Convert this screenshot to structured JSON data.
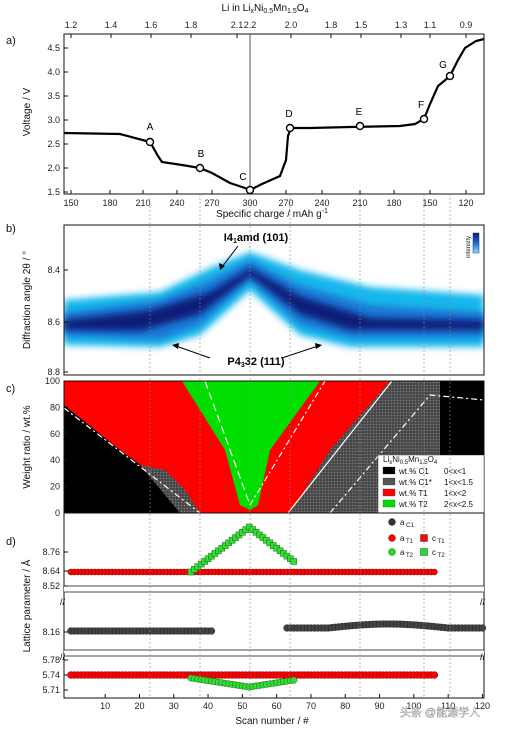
{
  "panels": {
    "a": {
      "label": "a)",
      "top_axis_label": "Li in Li",
      "top_axis_formula_tail": [
        "x",
        "Ni",
        "0.5",
        "Mn",
        "1.5",
        "O",
        "4"
      ],
      "top_ticks": [
        "1.2",
        "1.4",
        "1.6",
        "1.8",
        "2.1",
        "2.2",
        "2.0",
        "1.8",
        "1.5",
        "1.3",
        "1.1",
        "0.9"
      ],
      "bottom_ticks": [
        "150",
        "180",
        "210",
        "240",
        "270",
        "300",
        "270",
        "240",
        "210",
        "180",
        "150",
        "120"
      ],
      "ylabel": "Voltage / V",
      "yticks": [
        "1.5",
        "2.0",
        "2.5",
        "3.0",
        "3.5",
        "4.0",
        "4.5"
      ],
      "xlabel": "Specific charge / mAh g",
      "xlabel_sup": "-1",
      "points": [
        "A",
        "B",
        "C",
        "D",
        "E",
        "F",
        "G"
      ]
    },
    "b": {
      "label": "b)",
      "ylabel": "Diffraction angle 2θ / °",
      "yticks": [
        "8.4",
        "8.6",
        "8.8"
      ],
      "annot_top": "I4",
      "annot_top_sub": "1",
      "annot_top_tail": "amd (101)",
      "annot_bottom": "P4",
      "annot_bottom_sub": "3",
      "annot_bottom_tail": "32 (111)",
      "colorbar_label": "intensity"
    },
    "c": {
      "label": "c)",
      "ylabel": "Weight ratio / wt.%",
      "yticks": [
        "0",
        "20",
        "40",
        "60",
        "80",
        "100"
      ],
      "legend_title": "Li",
      "legend_title_parts": [
        "x",
        "Ni",
        "0.5",
        "Mn",
        "1.5",
        "O",
        "4"
      ],
      "legend": [
        {
          "name": "wt.% C1",
          "range": "0<x<1",
          "color": "#000000"
        },
        {
          "name": "wt.% C1*",
          "range": "1<x<1.5",
          "color": "#555555"
        },
        {
          "name": "wt.% T1",
          "range": "1<x<2",
          "color": "#ff0000"
        },
        {
          "name": "wt.% T2",
          "range": "2<x<2.5",
          "color": "#00e000"
        }
      ]
    },
    "d": {
      "label": "d)",
      "ylabel": "Lattice parameter / Å",
      "yticks_top": [
        "8.76",
        "8.64",
        "8.52"
      ],
      "yticks_mid": [
        "8.16"
      ],
      "yticks_bot": [
        "5.78",
        "5.74",
        "5.71"
      ],
      "xlabel": "Scan number / #",
      "xticks": [
        "10",
        "20",
        "30",
        "40",
        "50",
        "60",
        "70",
        "80",
        "90",
        "100",
        "110",
        "120"
      ],
      "legend": [
        {
          "name": "a",
          "sub": "C1",
          "symbol": "circle",
          "color": "#333333"
        },
        {
          "name": "a",
          "sub": "T1",
          "symbol": "circle",
          "color": "#ff0000"
        },
        {
          "name": "c",
          "sub": "T1",
          "symbol": "square",
          "color": "#ff0000"
        },
        {
          "name": "a",
          "sub": "T2",
          "symbol": "circle",
          "color": "#22dd22"
        },
        {
          "name": "c",
          "sub": "T2",
          "symbol": "square",
          "color": "#22dd22"
        }
      ]
    }
  },
  "watermark": "头条 @能源学人",
  "colors": {
    "c1": "#000000",
    "c1star": "#555555",
    "t1": "#ff0000",
    "t2": "#00e000",
    "heat_dark": "#0a1a78",
    "heat_light": "#00c8f0"
  }
}
